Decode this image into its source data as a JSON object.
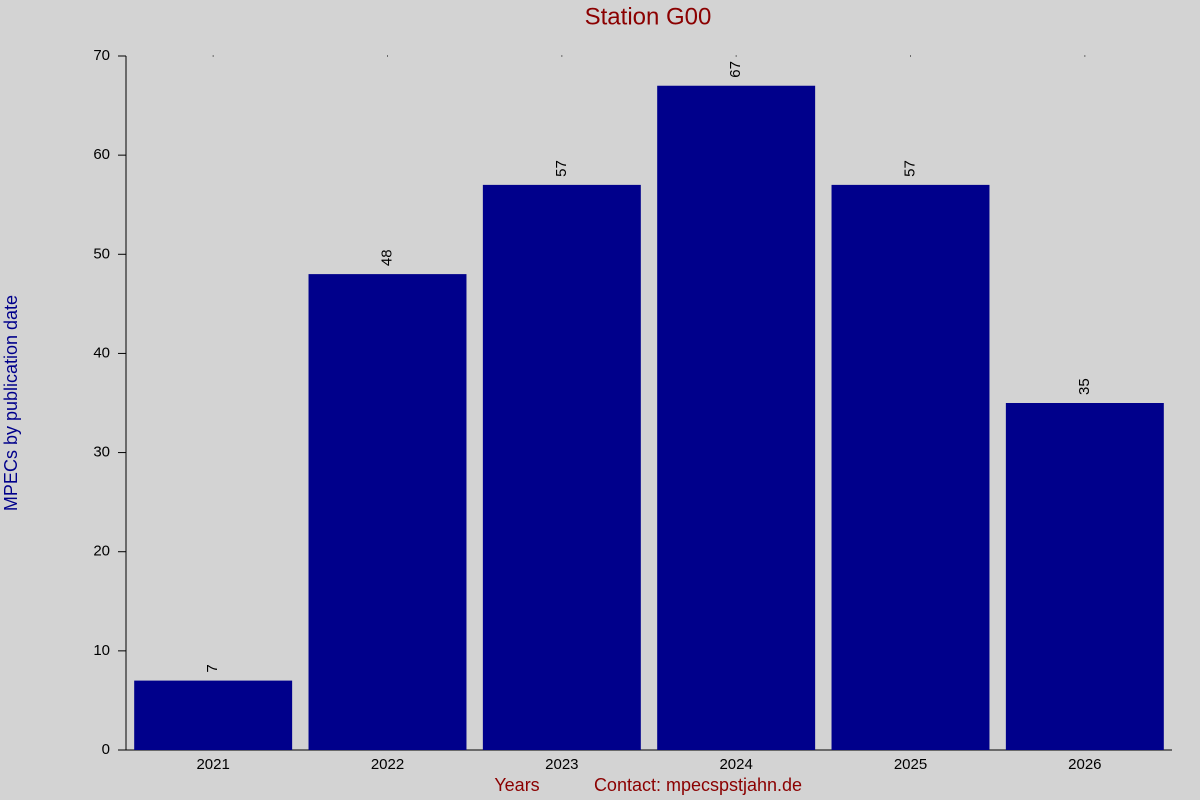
{
  "chart_data": {
    "type": "bar",
    "title": "Station G00",
    "x_label": "Years",
    "contact": "Contact: mpecspstjahn.de",
    "y_label": "MPECs by publication date",
    "categories": [
      "2021",
      "2022",
      "2023",
      "2024",
      "2025",
      "2026"
    ],
    "values": [
      7,
      48,
      57,
      67,
      57,
      35
    ],
    "color": "#00008b",
    "ylim": [
      0,
      70
    ],
    "yticks": [
      0,
      10,
      20,
      30,
      40,
      50,
      60,
      70
    ],
    "grid": false
  }
}
